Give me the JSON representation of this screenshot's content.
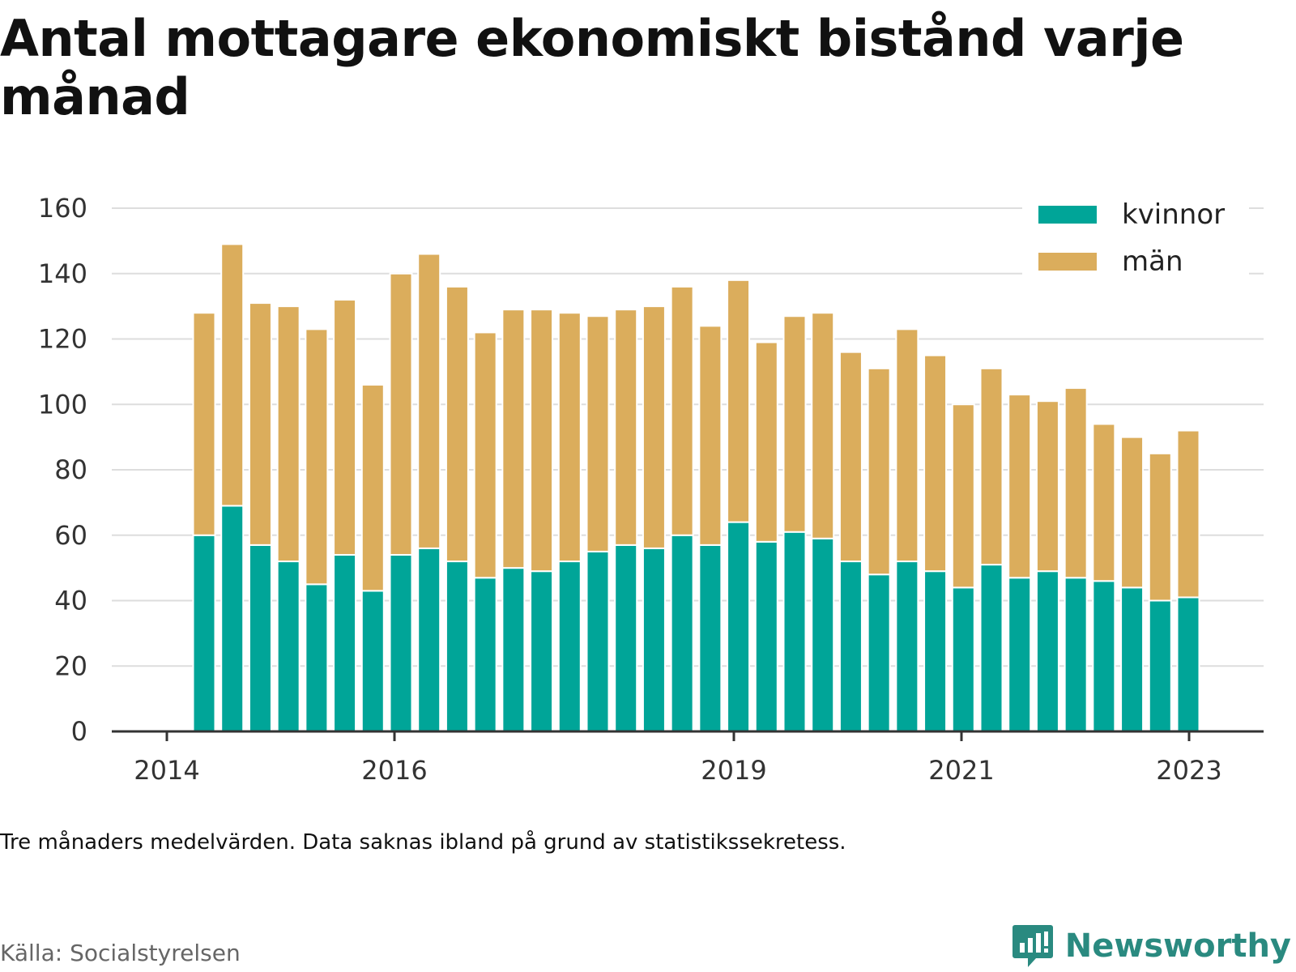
{
  "title": "Antal mottagare ekonomiskt bistånd varje månad",
  "note": "Tre månaders medelvärden. Data saknas ibland på grund av statistikssekretess.",
  "source": "Källa: Socialstyrelsen",
  "brand": {
    "name": "Newsworthy",
    "icon": "newsworthy-logo-icon",
    "color": "#2a8a80"
  },
  "colors": {
    "kvinnor": "#00a598",
    "man": "#dbad5c",
    "grid": "#dddddd",
    "axis": "#333333"
  },
  "chart_data": {
    "type": "bar",
    "stacked": true,
    "ylim": [
      0,
      160
    ],
    "yticks": [
      0,
      20,
      40,
      60,
      80,
      100,
      120,
      140,
      160
    ],
    "xticks": [
      "2014",
      "2016",
      "2019",
      "2021",
      "2023"
    ],
    "xlabel": "",
    "ylabel": "",
    "grid": true,
    "legend_position": "top-right",
    "series": [
      {
        "name": "kvinnor",
        "color": "#00a598",
        "values": [
          60,
          69,
          57,
          52,
          45,
          54,
          43,
          54,
          56,
          52,
          47,
          50,
          49,
          52,
          55,
          57,
          56,
          60,
          57,
          64,
          58,
          61,
          59,
          52,
          48,
          52,
          49,
          44,
          51,
          47,
          49,
          47,
          46,
          44,
          40,
          41
        ]
      },
      {
        "name": "män",
        "color": "#dbad5c",
        "values": [
          68,
          80,
          74,
          78,
          78,
          78,
          63,
          86,
          90,
          84,
          75,
          79,
          80,
          76,
          72,
          72,
          74,
          76,
          67,
          74,
          61,
          66,
          69,
          64,
          63,
          71,
          66,
          56,
          60,
          56,
          52,
          58,
          48,
          46,
          45,
          51
        ]
      }
    ]
  }
}
